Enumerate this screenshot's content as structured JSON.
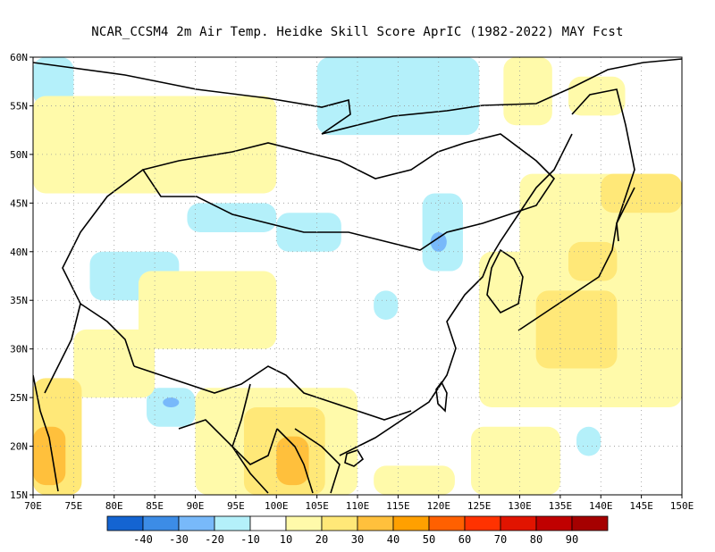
{
  "title": "NCAR_CCSM4  2m Air Temp. Heidke Skill Score AprIC (1982-2022) MAY Fcst",
  "chart_data": {
    "type": "heatmap",
    "title": "NCAR_CCSM4  2m Air Temp. Heidke Skill Score AprIC (1982-2022) MAY Fcst",
    "xlim": [
      70,
      150
    ],
    "ylim": [
      15,
      60
    ],
    "x_ticks": [
      70,
      75,
      80,
      85,
      90,
      95,
      100,
      105,
      110,
      115,
      120,
      125,
      130,
      135,
      140,
      145,
      150
    ],
    "x_tick_labels": [
      "70E",
      "75E",
      "80E",
      "85E",
      "90E",
      "95E",
      "100E",
      "105E",
      "110E",
      "115E",
      "120E",
      "125E",
      "130E",
      "135E",
      "140E",
      "145E",
      "150E"
    ],
    "y_ticks": [
      15,
      20,
      25,
      30,
      35,
      40,
      45,
      50,
      55,
      60
    ],
    "y_tick_labels": [
      "15N",
      "20N",
      "25N",
      "30N",
      "35N",
      "40N",
      "45N",
      "50N",
      "55N",
      "60N"
    ],
    "grid": true,
    "colorbar": {
      "colors": [
        "#1464d2",
        "#3c8ce6",
        "#78b9fa",
        "#b4f0fa",
        "#ffffff",
        "#fffaaa",
        "#ffe878",
        "#ffc03c",
        "#ffa000",
        "#ff6000",
        "#ff3200",
        "#e11400",
        "#c00000",
        "#a50000"
      ],
      "labels": [
        "-40",
        "-30",
        "-20",
        "-10",
        "10",
        "20",
        "30",
        "40",
        "50",
        "60",
        "70",
        "80",
        "90"
      ]
    },
    "regions": [
      {
        "lon": [
          110,
          122
        ],
        "lat": [
          55,
          60
        ],
        "level": -20
      },
      {
        "lon": [
          105,
          125
        ],
        "lat": [
          52,
          60
        ],
        "level": -10
      },
      {
        "lon": [
          70,
          75
        ],
        "lat": [
          55,
          60
        ],
        "level": -10
      },
      {
        "lon": [
          77,
          88
        ],
        "lat": [
          35,
          40
        ],
        "level": -10
      },
      {
        "lon": [
          89,
          100
        ],
        "lat": [
          42,
          45
        ],
        "level": -10
      },
      {
        "lon": [
          100,
          108
        ],
        "lat": [
          40,
          44
        ],
        "level": -10
      },
      {
        "lon": [
          118,
          123
        ],
        "lat": [
          38,
          46
        ],
        "level": -10
      },
      {
        "lon": [
          119,
          121
        ],
        "lat": [
          40,
          42
        ],
        "level": -20
      },
      {
        "lon": [
          112,
          115
        ],
        "lat": [
          33,
          36
        ],
        "level": -10
      },
      {
        "lon": [
          84,
          90
        ],
        "lat": [
          22,
          26
        ],
        "level": -10
      },
      {
        "lon": [
          86,
          88
        ],
        "lat": [
          24,
          25
        ],
        "level": -20
      },
      {
        "lon": [
          137,
          140
        ],
        "lat": [
          19,
          22
        ],
        "level": -10
      },
      {
        "lon": [
          70,
          100
        ],
        "lat": [
          46,
          56
        ],
        "level": 20
      },
      {
        "lon": [
          75,
          85
        ],
        "lat": [
          25,
          32
        ],
        "level": 20
      },
      {
        "lon": [
          83,
          100
        ],
        "lat": [
          30,
          38
        ],
        "level": 20
      },
      {
        "lon": [
          90,
          110
        ],
        "lat": [
          15,
          26
        ],
        "level": 20
      },
      {
        "lon": [
          70,
          76
        ],
        "lat": [
          15,
          27
        ],
        "level": 30
      },
      {
        "lon": [
          70,
          74
        ],
        "lat": [
          16,
          22
        ],
        "level": 40
      },
      {
        "lon": [
          96,
          106
        ],
        "lat": [
          15,
          24
        ],
        "level": 30
      },
      {
        "lon": [
          100,
          104
        ],
        "lat": [
          16,
          21
        ],
        "level": 40
      },
      {
        "lon": [
          112,
          122
        ],
        "lat": [
          15,
          18
        ],
        "level": 20
      },
      {
        "lon": [
          125,
          150
        ],
        "lat": [
          24,
          40
        ],
        "level": 20
      },
      {
        "lon": [
          130,
          150
        ],
        "lat": [
          30,
          48
        ],
        "level": 20
      },
      {
        "lon": [
          132,
          142
        ],
        "lat": [
          28,
          36
        ],
        "level": 30
      },
      {
        "lon": [
          136,
          142
        ],
        "lat": [
          37,
          41
        ],
        "level": 30
      },
      {
        "lon": [
          140,
          150
        ],
        "lat": [
          44,
          48
        ],
        "level": 30
      },
      {
        "lon": [
          124,
          135
        ],
        "lat": [
          15,
          22
        ],
        "level": 20
      },
      {
        "lon": [
          128,
          134
        ],
        "lat": [
          53,
          60
        ],
        "level": 20
      },
      {
        "lon": [
          136,
          143
        ],
        "lat": [
          54,
          58
        ],
        "level": 20
      }
    ]
  }
}
